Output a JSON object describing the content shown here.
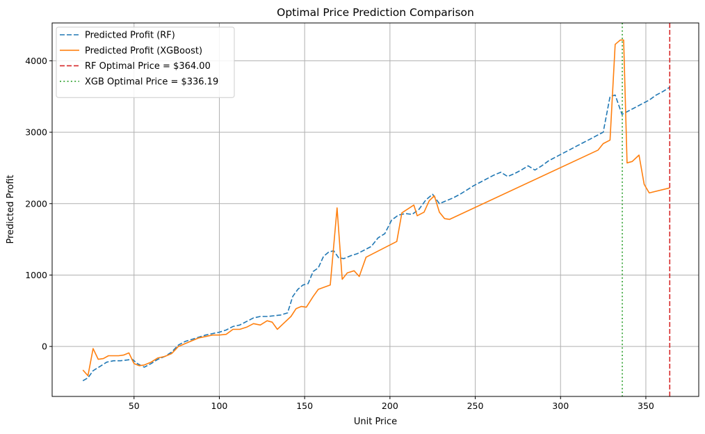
{
  "chart_data": {
    "type": "line",
    "title": "Optimal Price Prediction Comparison",
    "xlabel": "Unit Price",
    "ylabel": "Predicted Profit",
    "xlim": [
      2,
      381
    ],
    "ylim": [
      -700,
      4530
    ],
    "xticks": [
      50,
      100,
      150,
      200,
      250,
      300,
      350
    ],
    "yticks": [
      0,
      1000,
      2000,
      3000,
      4000
    ],
    "grid": true,
    "legend_position": "top-left",
    "series": [
      {
        "name": "Predicted Profit (RF)",
        "color": "#1f77b4",
        "style": "dashed",
        "x": [
          20,
          23,
          26,
          30,
          34,
          38,
          42,
          46,
          49,
          52,
          56,
          60,
          64,
          68,
          72,
          76,
          80,
          84,
          88,
          92,
          96,
          100,
          104,
          108,
          112,
          116,
          120,
          124,
          128,
          132,
          136,
          140,
          143,
          146,
          149,
          152,
          155,
          158,
          161,
          164,
          167,
          170,
          173,
          177,
          181,
          185,
          189,
          193,
          197,
          201,
          205,
          209,
          213,
          217,
          221,
          225,
          229,
          233,
          237,
          241,
          245,
          249,
          253,
          257,
          261,
          265,
          269,
          273,
          277,
          281,
          285,
          289,
          293,
          297,
          301,
          305,
          309,
          313,
          317,
          321,
          325,
          329,
          332,
          336,
          340,
          344,
          348,
          352,
          356,
          360,
          364
        ],
        "y": [
          -480,
          -440,
          -340,
          -280,
          -220,
          -200,
          -200,
          -190,
          -180,
          -240,
          -290,
          -240,
          -180,
          -140,
          -80,
          20,
          70,
          100,
          130,
          160,
          180,
          200,
          230,
          280,
          300,
          350,
          400,
          420,
          420,
          430,
          440,
          470,
          700,
          800,
          860,
          880,
          1050,
          1100,
          1260,
          1320,
          1340,
          1240,
          1230,
          1270,
          1300,
          1350,
          1400,
          1520,
          1580,
          1770,
          1840,
          1860,
          1850,
          1920,
          2050,
          2130,
          2000,
          2040,
          2080,
          2130,
          2190,
          2250,
          2300,
          2350,
          2400,
          2440,
          2380,
          2420,
          2470,
          2530,
          2470,
          2530,
          2600,
          2650,
          2700,
          2750,
          2800,
          2850,
          2900,
          2950,
          3000,
          3500,
          3520,
          3250,
          3300,
          3350,
          3400,
          3450,
          3520,
          3570,
          3630
        ]
      },
      {
        "name": "Predicted Profit (XGBoost)",
        "color": "#ff7f0e",
        "style": "solid",
        "x": [
          20,
          23,
          26,
          29,
          32,
          35,
          38,
          41,
          44,
          47,
          50,
          53,
          56,
          60,
          64,
          68,
          72,
          76,
          80,
          84,
          88,
          92,
          96,
          100,
          104,
          108,
          112,
          116,
          120,
          124,
          128,
          131,
          134,
          138,
          142,
          145,
          148,
          151,
          155,
          158,
          165,
          169,
          172,
          175,
          179,
          182,
          186,
          204,
          207,
          214,
          216,
          220,
          223,
          226,
          229,
          232,
          235,
          322,
          325,
          329,
          332,
          335,
          337,
          339,
          342,
          346,
          349,
          352,
          364
        ],
        "y": [
          -330,
          -410,
          -30,
          -180,
          -170,
          -130,
          -130,
          -130,
          -120,
          -90,
          -240,
          -270,
          -260,
          -220,
          -160,
          -140,
          -100,
          0,
          40,
          80,
          120,
          140,
          160,
          160,
          170,
          240,
          240,
          270,
          320,
          300,
          360,
          340,
          240,
          330,
          420,
          530,
          560,
          550,
          700,
          800,
          860,
          1940,
          940,
          1030,
          1060,
          980,
          1250,
          1470,
          1870,
          1980,
          1830,
          1880,
          2040,
          2110,
          1880,
          1790,
          1780,
          2750,
          2840,
          2890,
          4230,
          4290,
          4290,
          2570,
          2590,
          2680,
          2270,
          2150,
          2220
        ]
      }
    ],
    "vlines": [
      {
        "name": "RF Optimal Price = $364.00",
        "x": 364,
        "color": "#d62728",
        "style": "dashed"
      },
      {
        "name": "XGB Optimal Price = $336.19",
        "x": 336.19,
        "color": "#2ca02c",
        "style": "dotted"
      }
    ]
  }
}
